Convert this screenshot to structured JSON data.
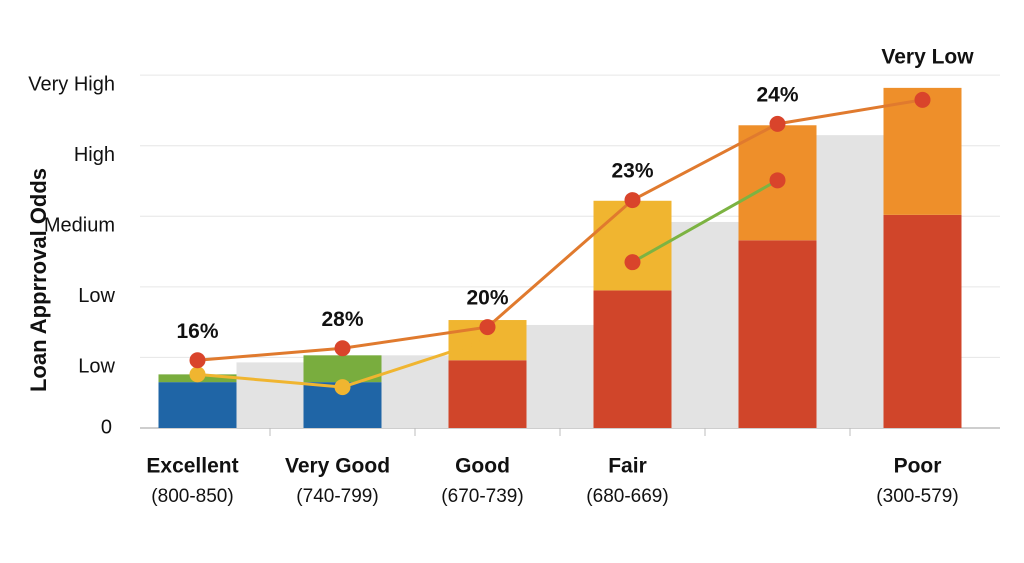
{
  "chart_data": {
    "type": "bar",
    "y_label": "Loan Apprroval Odds",
    "categories": [
      "Excellent",
      "Very Good",
      "Good",
      "Fair",
      null,
      "Poor"
    ],
    "category_sublabels": [
      "(800-850)",
      "(740-799)",
      "(670-739)",
      "(680-669)",
      null,
      "(300-579)"
    ],
    "ylim": [
      0,
      5.3
    ],
    "yticks": [
      0,
      {
        "value": 1,
        "label": "Low"
      },
      {
        "value": 2,
        "label": "Low"
      },
      {
        "value": 3,
        "label": "Medium"
      },
      {
        "value": 4,
        "label": "High"
      },
      {
        "value": 5,
        "label": "Very High"
      }
    ],
    "grid": true,
    "stacked": true,
    "series": [
      {
        "colors": [
          "#1f65a6",
          "#1f65a6",
          "#d0452a",
          "#d0452a",
          "#d0452a",
          "#d0452a"
        ],
        "values": [
          0.65,
          0.65,
          0.96,
          1.95,
          2.66,
          3.02
        ]
      },
      {
        "colors": [
          "#79ad3e",
          "#79ad3e",
          "#f0b530",
          "#f0b530",
          "#ee8f2a",
          "#ee8f2a"
        ],
        "values": [
          0.11,
          0.38,
          0.57,
          1.27,
          1.63,
          1.8
        ]
      }
    ],
    "shadow_bars": {
      "color": "#e3e3e3",
      "values": [
        0.93,
        1.03,
        1.46,
        2.92,
        4.15,
        null
      ]
    },
    "lines": [
      {
        "color": "#f0b530",
        "values": [
          0.76,
          0.58,
          1.25,
          null,
          null,
          null
        ]
      },
      {
        "color": "#7cb342",
        "marker_color": "#d9442b",
        "values": [
          null,
          null,
          null,
          2.35,
          3.51,
          null
        ]
      },
      {
        "color": "#e07a2e",
        "marker_color": "#d9442b",
        "values": [
          0.96,
          1.13,
          1.43,
          3.23,
          4.31,
          4.65
        ]
      }
    ],
    "annotations": [
      "16%",
      "28%",
      "20%",
      "23%",
      "24%",
      "Very Low"
    ]
  }
}
